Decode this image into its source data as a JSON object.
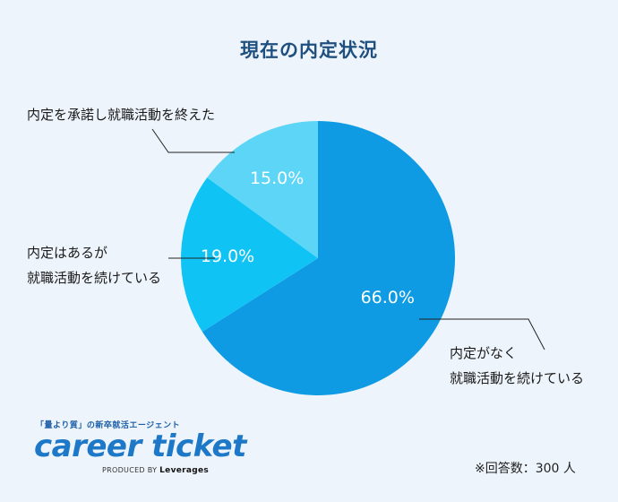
{
  "chart_data": {
    "type": "pie",
    "title": "現在の内定状況",
    "slices": [
      {
        "label_lines": [
          "内定がなく",
          "就職活動を続けている"
        ],
        "value": 66.0,
        "value_label": "66.0%",
        "color": "#0e9be4"
      },
      {
        "label_lines": [
          "内定はあるが",
          "就職活動を続けている"
        ],
        "value": 19.0,
        "value_label": "19.0%",
        "color": "#0fc4f5"
      },
      {
        "label_lines": [
          "内定を承諾し就職活動を終えた"
        ],
        "value": 15.0,
        "value_label": "15.0%",
        "color": "#5cd5f7"
      }
    ],
    "start": "12 o'clock, clockwise",
    "note": "※回答数：300 人"
  },
  "labels": {
    "finished": "内定を承諾し就職活動を終えた",
    "offer_line1": "内定はあるが",
    "offer_line2": "就職活動を続けている",
    "none_line1": "内定がなく",
    "none_line2": "就職活動を続けている"
  },
  "logo": {
    "tagline": "「量より質」の新卒就活エージェント",
    "name": "career ticket",
    "produced_by": "PRODUCED BY",
    "company": "Leverages"
  }
}
